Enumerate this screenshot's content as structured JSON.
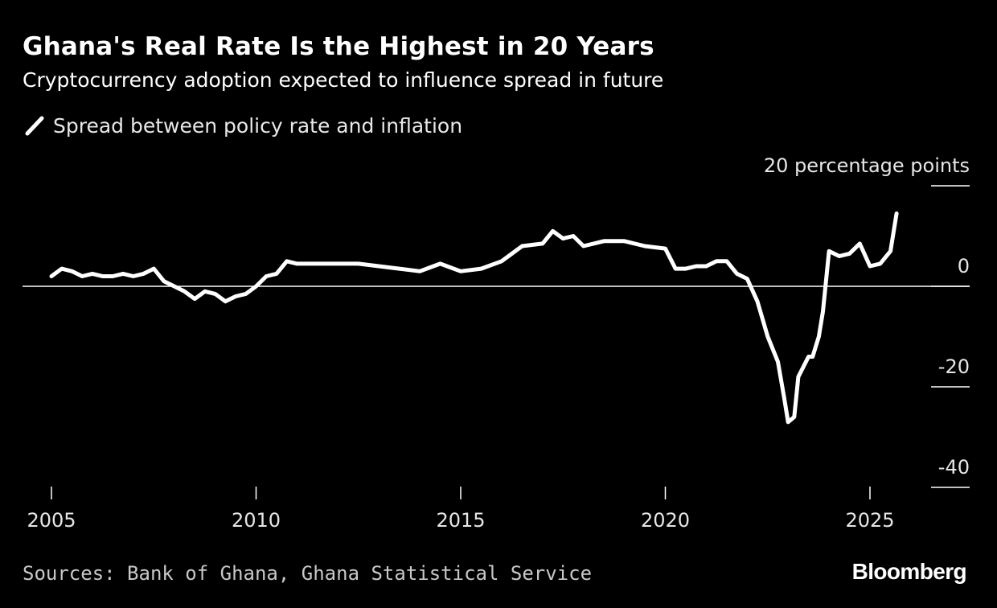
{
  "header": {
    "title": "Ghana's Real Rate Is the Highest in 20 Years",
    "subtitle": "Cryptocurrency adoption expected to influence spread in future"
  },
  "footer": {
    "source": "Sources: Bank of Ghana, Ghana Statistical Service",
    "logo": "Bloomberg"
  },
  "colors": {
    "background": "#000000",
    "series": "#ffffff",
    "zero_line": "#ffffff",
    "text": "#ffffff"
  },
  "chart_data": {
    "type": "line",
    "title": "Ghana's Real Rate Is the Highest in 20 Years",
    "subtitle": "Cryptocurrency adoption expected to influence spread in future",
    "unit_label": "20 percentage points",
    "xlim": [
      2005,
      2026.2
    ],
    "ylim": [
      -40,
      20
    ],
    "x_ticks": [
      2005,
      2010,
      2015,
      2020,
      2025
    ],
    "y_ticks": [
      20,
      0,
      -20,
      -40
    ],
    "y_tick_labels": [
      "20 percentage points",
      "0",
      "-20",
      "-40"
    ],
    "grid": false,
    "zero_line": true,
    "legend": {
      "position": "top-left"
    },
    "series": [
      {
        "name": "Spread between policy rate and inflation",
        "points": [
          [
            2005.0,
            2.0
          ],
          [
            2005.25,
            3.5
          ],
          [
            2005.5,
            3.0
          ],
          [
            2005.75,
            2.0
          ],
          [
            2006.0,
            2.5
          ],
          [
            2006.25,
            2.0
          ],
          [
            2006.5,
            2.0
          ],
          [
            2006.75,
            2.5
          ],
          [
            2007.0,
            2.0
          ],
          [
            2007.25,
            2.5
          ],
          [
            2007.5,
            3.5
          ],
          [
            2007.75,
            1.0
          ],
          [
            2008.0,
            0.0
          ],
          [
            2008.25,
            -1.0
          ],
          [
            2008.5,
            -2.5
          ],
          [
            2008.75,
            -1.0
          ],
          [
            2009.0,
            -1.5
          ],
          [
            2009.25,
            -3.0
          ],
          [
            2009.5,
            -2.0
          ],
          [
            2009.75,
            -1.5
          ],
          [
            2010.0,
            0.0
          ],
          [
            2010.25,
            2.0
          ],
          [
            2010.5,
            2.5
          ],
          [
            2010.75,
            5.0
          ],
          [
            2011.0,
            4.5
          ],
          [
            2011.5,
            4.5
          ],
          [
            2012.0,
            4.5
          ],
          [
            2012.5,
            4.5
          ],
          [
            2013.0,
            4.0
          ],
          [
            2013.5,
            3.5
          ],
          [
            2014.0,
            3.0
          ],
          [
            2014.5,
            4.5
          ],
          [
            2015.0,
            3.0
          ],
          [
            2015.5,
            3.5
          ],
          [
            2016.0,
            5.0
          ],
          [
            2016.5,
            8.0
          ],
          [
            2017.0,
            8.5
          ],
          [
            2017.25,
            11.0
          ],
          [
            2017.5,
            9.5
          ],
          [
            2017.75,
            10.0
          ],
          [
            2018.0,
            8.0
          ],
          [
            2018.5,
            9.0
          ],
          [
            2019.0,
            9.0
          ],
          [
            2019.5,
            8.0
          ],
          [
            2020.0,
            7.5
          ],
          [
            2020.25,
            3.5
          ],
          [
            2020.5,
            3.5
          ],
          [
            2020.75,
            4.0
          ],
          [
            2021.0,
            4.0
          ],
          [
            2021.25,
            5.0
          ],
          [
            2021.5,
            5.0
          ],
          [
            2021.75,
            2.5
          ],
          [
            2022.0,
            1.5
          ],
          [
            2022.25,
            -3.0
          ],
          [
            2022.5,
            -10.0
          ],
          [
            2022.75,
            -15.0
          ],
          [
            2022.9,
            -22.0
          ],
          [
            2023.0,
            -27.0
          ],
          [
            2023.15,
            -26.0
          ],
          [
            2023.25,
            -18.0
          ],
          [
            2023.5,
            -14.0
          ],
          [
            2023.6,
            -14.0
          ],
          [
            2023.75,
            -10.0
          ],
          [
            2023.85,
            -5.0
          ],
          [
            2024.0,
            7.0
          ],
          [
            2024.25,
            6.0
          ],
          [
            2024.5,
            6.5
          ],
          [
            2024.75,
            8.5
          ],
          [
            2025.0,
            4.0
          ],
          [
            2025.25,
            4.5
          ],
          [
            2025.5,
            7.0
          ],
          [
            2025.65,
            14.5
          ]
        ]
      }
    ]
  }
}
